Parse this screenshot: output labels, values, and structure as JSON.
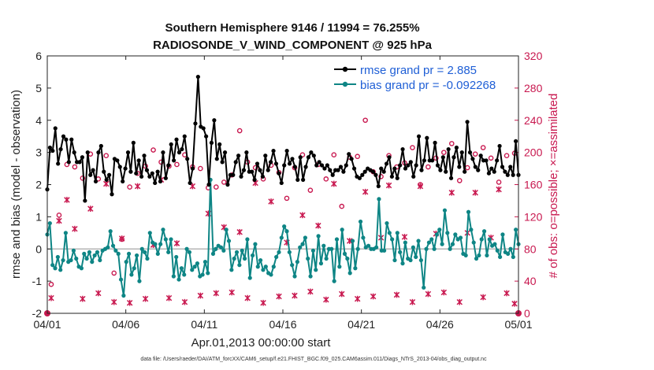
{
  "chart_data": {
    "type": "line",
    "title_line1": "Southern Hemisphere 9146 / 11994 = 76.255%",
    "title_line2": "RADIOSONDE_V_WIND_COMPONENT @ 925 hPa",
    "xlabel": "Apr.01,2013 00:00:00 start",
    "ylabel": "rmse and bias (model - observation)",
    "y2label": "# of obs: o=possible; ×=assimilated",
    "footnote": "data file: /Users/raeder/DAI/ATM_forcXX/CAM6_setup/f.e21.FHIST_BGC.f09_025.CAM6assim.011/Diags_NTrS_2013-04/obs_diag_output.nc",
    "xlim": [
      0,
      30
    ],
    "ylim": [
      -2,
      6
    ],
    "y2lim": [
      0,
      320
    ],
    "x_ticks": [
      0,
      5,
      10,
      15,
      20,
      25,
      30
    ],
    "x_tick_labels": [
      "04/01",
      "04/06",
      "04/11",
      "04/16",
      "04/21",
      "04/26",
      "05/01"
    ],
    "y_ticks": [
      -2,
      -1,
      0,
      1,
      2,
      3,
      4,
      5,
      6
    ],
    "y2_ticks": [
      0,
      40,
      80,
      120,
      160,
      200,
      240,
      280,
      320
    ],
    "colors": {
      "rmse": "#000000",
      "bias": "#0e8585",
      "obs": "#c8184f",
      "zero_line": "#b5b5b5"
    },
    "legend": [
      {
        "name": "rmse grand pr = 2.885"
      },
      {
        "name": "bias grand pr = -0.092268"
      }
    ],
    "series": [
      {
        "name": "rmse",
        "axis": "left",
        "values": [
          1.85,
          3.15,
          3.05,
          3.75,
          2.65,
          3.1,
          3.5,
          3.4,
          2.7,
          3.4,
          3.0,
          2.7,
          2.7,
          2.85,
          1.5,
          3.0,
          2.3,
          2.45,
          2.1,
          3.0,
          3.2,
          2.4,
          2.15,
          2.3,
          1.7,
          2.8,
          2.75,
          2.55,
          2.1,
          2.5,
          3.0,
          2.4,
          3.3,
          2.35,
          2.75,
          2.25,
          2.9,
          2.45,
          2.25,
          2.35,
          2.05,
          2.4,
          2.1,
          3.0,
          2.2,
          2.6,
          3.25,
          2.75,
          3.4,
          3.0,
          3.1,
          3.5,
          2.8,
          2.05,
          2.5,
          3.9,
          5.35,
          3.8,
          3.75,
          3.5,
          2.0,
          3.3,
          4.0,
          2.8,
          3.25,
          2.7,
          3.0,
          2.0,
          2.3,
          2.3,
          2.7,
          2.9,
          2.25,
          2.45,
          3.0,
          2.4,
          2.4,
          2.15,
          2.65,
          2.45,
          2.25,
          2.9,
          2.45,
          2.7,
          3.05,
          2.65,
          2.35,
          2.05,
          2.6,
          3.05,
          2.65,
          2.8,
          2.55,
          2.15,
          2.85,
          2.15,
          2.55,
          2.85,
          3.0,
          2.9,
          2.6,
          2.7,
          2.6,
          2.5,
          2.6,
          2.45,
          2.3,
          2.45,
          2.45,
          2.55,
          2.4,
          2.6,
          2.95,
          2.8,
          2.5,
          2.25,
          2.2,
          2.3,
          2.4,
          2.5,
          2.45,
          2.4,
          2.3,
          1.95,
          2.5,
          2.4,
          2.65,
          2.85,
          2.25,
          2.5,
          2.2,
          2.6,
          3.1,
          2.5,
          2.6,
          2.7,
          2.25,
          2.6,
          3.5,
          2.45,
          2.75,
          3.45,
          2.75,
          2.75,
          3.3,
          2.6,
          2.45,
          2.85,
          2.4,
          3.1,
          2.2,
          2.85,
          3.15,
          2.55,
          3.0,
          2.4,
          3.95,
          3.0,
          2.8,
          2.55,
          2.45,
          2.9,
          2.75,
          2.75,
          2.35,
          2.5,
          2.4,
          2.75,
          3.2,
          2.55,
          2.4,
          2.3,
          2.55,
          2.3,
          3.35,
          2.3
        ]
      },
      {
        "name": "bias",
        "axis": "left",
        "values": [
          0.45,
          0.8,
          -0.5,
          -0.6,
          -0.25,
          -0.65,
          -0.35,
          0.5,
          -0.4,
          -0.35,
          -0.05,
          -0.3,
          -0.55,
          -0.6,
          -0.15,
          -0.3,
          -0.1,
          -0.4,
          -0.2,
          -0.1,
          -0.35,
          -0.05,
          0.0,
          0.05,
          0.55,
          0.1,
          -0.05,
          -0.15,
          -0.95,
          -1.45,
          -0.4,
          -0.15,
          -0.8,
          -0.6,
          -0.2,
          -1.0,
          0.0,
          -0.1,
          -0.3,
          0.5,
          0.2,
          0.15,
          -0.15,
          0.15,
          0.6,
          0.3,
          -0.1,
          0.3,
          -0.85,
          -0.25,
          -0.95,
          -0.6,
          -0.8,
          0.0,
          -0.1,
          -0.65,
          -0.55,
          -0.45,
          -0.85,
          -0.8,
          -0.4,
          -0.75,
          2.15,
          -0.15,
          0.0,
          0.1,
          0.05,
          -0.05,
          0.6,
          0.25,
          -0.65,
          -0.3,
          -0.1,
          -0.5,
          -0.05,
          -0.3,
          0.3,
          -0.9,
          -0.2,
          0.15,
          -0.55,
          -0.35,
          -0.65,
          -0.55,
          -0.75,
          -0.8,
          -0.55,
          -0.25,
          -0.1,
          0.35,
          0.7,
          0.55,
          -0.1,
          -0.5,
          -0.85,
          -0.4,
          0.05,
          0.15,
          0.35,
          -0.3,
          -0.85,
          -0.05,
          -0.65,
          0.4,
          -0.45,
          0.1,
          -0.3,
          0.0,
          0.0,
          -1.0,
          0.3,
          -0.55,
          0.6,
          -0.15,
          -0.3,
          -0.75,
          0.25,
          -0.6,
          0.0,
          0.85,
          0.35,
          0.05,
          0.1,
          0.0,
          0.0,
          0.05,
          1.55,
          -0.05,
          -0.05,
          0.8,
          0.5,
          0.3,
          -0.35,
          0.5,
          -0.1,
          -0.45,
          0.2,
          -0.3,
          -0.35,
          0.05,
          -0.25,
          0.25,
          -0.35,
          -1.2,
          0.0,
          0.2,
          0.3,
          0.0,
          0.45,
          0.6,
          0.15,
          1.2,
          0.5,
          0.0,
          0.15,
          0.45,
          0.3,
          0.35,
          -0.15,
          -0.2,
          1.15,
          0.6,
          0.2,
          -0.3,
          -0.2,
          0.3,
          0.55,
          -0.2,
          0.3,
          0.1,
          0.15,
          -0.05,
          -0.25,
          0.45,
          -0.1,
          -0.15,
          0.0,
          -0.25,
          0.6,
          0.15
        ]
      }
    ],
    "obs_counts": {
      "axis": "right",
      "possible": [
        36,
        122,
        185,
        182,
        168,
        198,
        167,
        196,
        50,
        92,
        157,
        174,
        183,
        203,
        188,
        183,
        185,
        197,
        182,
        180,
        156,
        157,
        163,
        172,
        227,
        188,
        181,
        167,
        184,
        175,
        143,
        181,
        197,
        153,
        185,
        167,
        197,
        133,
        194,
        195,
        240,
        176,
        170,
        196,
        182,
        187,
        206,
        160,
        182,
        193,
        200,
        211,
        165,
        181,
        198,
        206,
        193,
        163,
        196,
        199
      ],
      "assimilated": [
        19,
        115,
        141,
        105,
        18,
        130,
        25,
        161,
        14,
        93,
        13,
        158,
        18,
        85,
        166,
        19,
        87,
        14,
        158,
        22,
        124,
        25,
        107,
        26,
        101,
        19,
        162,
        13,
        139,
        21,
        88,
        22,
        122,
        27,
        109,
        17,
        161,
        24,
        90,
        18,
        151,
        21,
        94,
        159,
        23,
        95,
        14,
        158,
        24,
        99,
        26,
        150,
        14,
        100,
        150,
        20,
        94,
        154,
        25,
        12
      ]
    }
  }
}
